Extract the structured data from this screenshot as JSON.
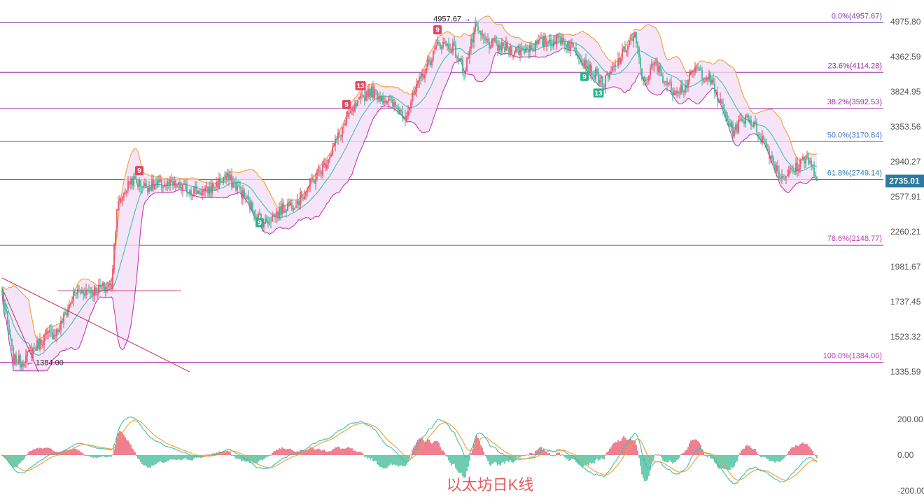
{
  "chart_data": [
    {
      "type": "candlestick",
      "title": "以太坊日K线",
      "price_axis_ticks": [
        4975.8,
        4362.59,
        3824.95,
        3353.56,
        2940.27,
        2577.91,
        2260.21,
        1981.67,
        1737.45,
        1523.32,
        1335.59
      ],
      "price_axis_labels": [
        "4975.80",
        "4362.59",
        "3824.95",
        "3353.56",
        "2940.27",
        "2577.91",
        "2260.21",
        "1981.67",
        "1737.45",
        "1523.32",
        "1335.59"
      ],
      "ylim": [
        1335.59,
        4975.8
      ],
      "scale": "log",
      "last_price": 2735.01,
      "last_price_label": "2735.01",
      "fibonacci_levels": [
        {
          "label": "0.0%(4957.67)",
          "ratio": 0.0,
          "price": 4957.67,
          "color": "#7b3fc4"
        },
        {
          "label": "23.6%(4114.28)",
          "ratio": 0.236,
          "price": 4114.28,
          "color": "#9c2ca3"
        },
        {
          "label": "38.2%(3592.53)",
          "ratio": 0.382,
          "price": 3592.53,
          "color": "#9c2ca3"
        },
        {
          "label": "50.0%(3170.84)",
          "ratio": 0.5,
          "price": 3170.84,
          "color": "#3f6fc2"
        },
        {
          "label": "61.8%(2749.14)",
          "ratio": 0.618,
          "price": 2749.14,
          "color": "#2f7fb0"
        },
        {
          "label": "78.6%(2148.77)",
          "ratio": 0.786,
          "price": 2148.77,
          "color": "#c23ab4"
        },
        {
          "label": "100.0%(1384.00)",
          "ratio": 1.0,
          "price": 1384.0,
          "color": "#c23ab4"
        }
      ],
      "annotations": [
        {
          "text": "4957.67",
          "price": 4957.67,
          "kind": "high"
        },
        {
          "text": "1384.00",
          "price": 1384.0,
          "kind": "low"
        }
      ],
      "td_markers": [
        {
          "text": "9",
          "index": 98,
          "side": "top",
          "color": "#e64560"
        },
        {
          "text": "9",
          "index": 184,
          "side": "bottom",
          "color": "#2bb48c"
        },
        {
          "text": "9",
          "index": 246,
          "side": "top",
          "color": "#e64560"
        },
        {
          "text": "13",
          "index": 256,
          "side": "top",
          "color": "#e64560"
        },
        {
          "text": "9",
          "index": 311,
          "side": "top",
          "color": "#e64560"
        },
        {
          "text": "9",
          "index": 416,
          "side": "bottom",
          "color": "#2bb48c"
        },
        {
          "text": "13",
          "index": 426,
          "side": "bottom",
          "color": "#2bb48c"
        }
      ],
      "price_anchors": [
        [
          0,
          1790
        ],
        [
          8,
          1400
        ],
        [
          14,
          1384
        ],
        [
          30,
          1520
        ],
        [
          40,
          1560
        ],
        [
          52,
          1800
        ],
        [
          68,
          1820
        ],
        [
          78,
          1850
        ],
        [
          82,
          2480
        ],
        [
          92,
          2750
        ],
        [
          102,
          2680
        ],
        [
          118,
          2700
        ],
        [
          130,
          2660
        ],
        [
          145,
          2620
        ],
        [
          160,
          2780
        ],
        [
          170,
          2640
        ],
        [
          182,
          2400
        ],
        [
          188,
          2340
        ],
        [
          200,
          2460
        ],
        [
          212,
          2550
        ],
        [
          230,
          2900
        ],
        [
          248,
          3500
        ],
        [
          262,
          3850
        ],
        [
          275,
          3700
        ],
        [
          288,
          3500
        ],
        [
          300,
          4060
        ],
        [
          312,
          4600
        ],
        [
          322,
          4520
        ],
        [
          330,
          4140
        ],
        [
          338,
          4840
        ],
        [
          346,
          4600
        ],
        [
          356,
          4520
        ],
        [
          370,
          4460
        ],
        [
          388,
          4620
        ],
        [
          400,
          4660
        ],
        [
          412,
          4420
        ],
        [
          420,
          4160
        ],
        [
          430,
          3950
        ],
        [
          438,
          4200
        ],
        [
          448,
          4620
        ],
        [
          452,
          4700
        ],
        [
          458,
          3960
        ],
        [
          466,
          4250
        ],
        [
          478,
          3850
        ],
        [
          488,
          3900
        ],
        [
          495,
          4170
        ],
        [
          505,
          4020
        ],
        [
          515,
          3570
        ],
        [
          522,
          3300
        ],
        [
          532,
          3500
        ],
        [
          544,
          3180
        ],
        [
          556,
          2780
        ],
        [
          566,
          2850
        ],
        [
          574,
          3010
        ],
        [
          582,
          2750
        ]
      ],
      "bollinger": {
        "period": 20,
        "multiplier": 2
      },
      "trendlines": [
        {
          "from": [
            0,
            1900
          ],
          "to": [
            134,
            1335
          ]
        },
        {
          "from": [
            0,
            1830
          ],
          "to": [
            26,
            1335
          ]
        },
        {
          "from": [
            40,
            1810
          ],
          "to": [
            128,
            1810
          ]
        }
      ],
      "colors": {
        "up": "#e64560",
        "down": "#2bb48c",
        "band_fill": "#f3dcf5",
        "band_upper": "#f0a030",
        "band_lower": "#c23ab4",
        "middle": "#3cc0b0"
      }
    },
    {
      "type": "macd",
      "ylim": [
        -230,
        330
      ],
      "axis_ticks": [
        200.0,
        0.0,
        -200.0
      ],
      "axis_labels": [
        "200.00",
        "0.00",
        "-200.00"
      ],
      "dif_color": "#3cc0b0",
      "dea_color": "#f0a030"
    }
  ]
}
